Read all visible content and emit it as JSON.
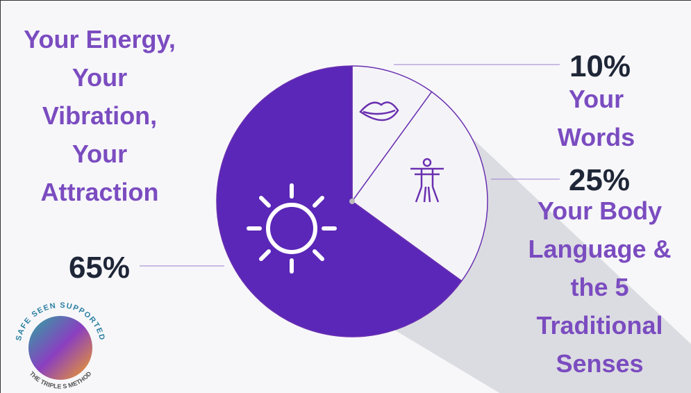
{
  "chart_data": {
    "type": "pie",
    "categories": [
      "Your Words",
      "Your Body Language & the 5 Traditional Senses",
      "Your Energy, Your Vibration, Your Attraction"
    ],
    "values": [
      10,
      25,
      65
    ],
    "value_labels": [
      "10%",
      "25%",
      "65%"
    ],
    "colors": [
      "#f4f4f8",
      "#f4f4f8",
      "#5a27b8"
    ]
  },
  "logo": {
    "top": "SAFE SEEN SUPPORTED",
    "bottom": "THE TRIPLE S METHOD"
  }
}
